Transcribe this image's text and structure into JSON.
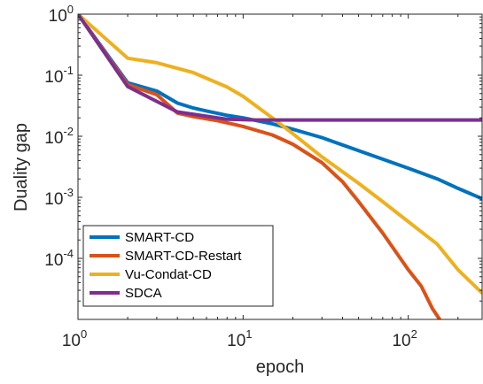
{
  "chart_data": {
    "type": "line",
    "title": "",
    "xlabel": "epoch",
    "ylabel": "Duality gap",
    "xscale": "log",
    "yscale": "log",
    "xlim": [
      1,
      280
    ],
    "ylim": [
      1e-05,
      1
    ],
    "grid": false,
    "legend_position": "bottom-left",
    "x_ticks": [
      {
        "base": "10",
        "exp": "0",
        "value": 1
      },
      {
        "base": "10",
        "exp": "1",
        "value": 10
      },
      {
        "base": "10",
        "exp": "2",
        "value": 100
      }
    ],
    "y_ticks": [
      {
        "base": "10",
        "exp": "-4",
        "value": 0.0001
      },
      {
        "base": "10",
        "exp": "-3",
        "value": 0.001
      },
      {
        "base": "10",
        "exp": "-2",
        "value": 0.01
      },
      {
        "base": "10",
        "exp": "-1",
        "value": 0.1
      },
      {
        "base": "10",
        "exp": "0",
        "value": 1
      }
    ],
    "series": [
      {
        "name": "SMART-CD",
        "color": "#0072BD",
        "points": [
          [
            1,
            1.0
          ],
          [
            2,
            0.075
          ],
          [
            3,
            0.055
          ],
          [
            4,
            0.035
          ],
          [
            5,
            0.029
          ],
          [
            6,
            0.026
          ],
          [
            8,
            0.022
          ],
          [
            10,
            0.02
          ],
          [
            15,
            0.016
          ],
          [
            20,
            0.013
          ],
          [
            30,
            0.0095
          ],
          [
            50,
            0.0058
          ],
          [
            100,
            0.003
          ],
          [
            150,
            0.002
          ],
          [
            200,
            0.0014
          ],
          [
            280,
            0.00095
          ]
        ]
      },
      {
        "name": "SMART-CD-Restart",
        "color": "#D95319",
        "points": [
          [
            1,
            1.0
          ],
          [
            2,
            0.07
          ],
          [
            3,
            0.048
          ],
          [
            4,
            0.024
          ],
          [
            5,
            0.021
          ],
          [
            7,
            0.018
          ],
          [
            10,
            0.0145
          ],
          [
            15,
            0.0105
          ],
          [
            20,
            0.0074
          ],
          [
            30,
            0.0037
          ],
          [
            40,
            0.0018
          ],
          [
            50,
            0.00085
          ],
          [
            70,
            0.00026
          ],
          [
            100,
            6.5e-05
          ],
          [
            120,
            3.5e-05
          ],
          [
            140,
            1.5e-05
          ],
          [
            155,
            1e-05
          ]
        ]
      },
      {
        "name": "Vu-Condat-CD",
        "color": "#EDB120",
        "points": [
          [
            1,
            1.0
          ],
          [
            2,
            0.19
          ],
          [
            3,
            0.16
          ],
          [
            5,
            0.11
          ],
          [
            8,
            0.064
          ],
          [
            10,
            0.045
          ],
          [
            15,
            0.02
          ],
          [
            20,
            0.011
          ],
          [
            30,
            0.0046
          ],
          [
            50,
            0.0017
          ],
          [
            70,
            0.00085
          ],
          [
            100,
            0.0004
          ],
          [
            150,
            0.00017
          ],
          [
            200,
            6.5e-05
          ],
          [
            280,
            2.7e-05
          ]
        ]
      },
      {
        "name": "SDCA",
        "color": "#7E2F8E",
        "points": [
          [
            1,
            1.0
          ],
          [
            2,
            0.065
          ],
          [
            4,
            0.025
          ],
          [
            8,
            0.019
          ],
          [
            12,
            0.0185
          ],
          [
            20,
            0.0185
          ],
          [
            50,
            0.0185
          ],
          [
            100,
            0.0185
          ],
          [
            280,
            0.0185
          ]
        ]
      }
    ]
  }
}
